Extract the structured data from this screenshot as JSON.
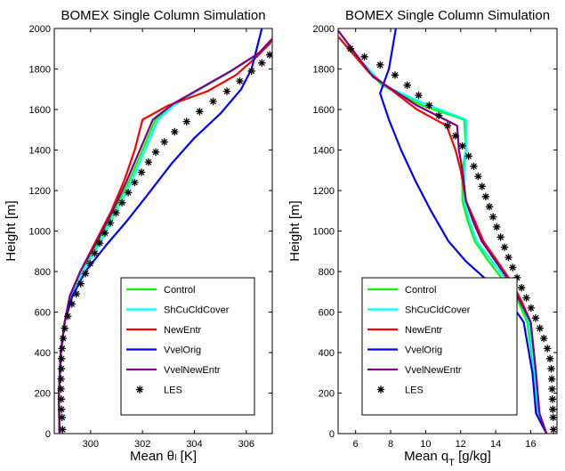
{
  "chart_data": [
    {
      "type": "line",
      "title": "BOMEX Single Column Simulation",
      "xlabel": "Mean θₗ [K]",
      "ylabel": "Height [m]",
      "xlim": [
        298.6,
        307
      ],
      "ylim": [
        0,
        2000
      ],
      "xticks": [
        300,
        302,
        304,
        306
      ],
      "yticks": [
        0,
        200,
        400,
        600,
        800,
        1000,
        1200,
        1400,
        1600,
        1800,
        2000
      ],
      "grid": false,
      "legend_position": "lower-right",
      "series": [
        {
          "name": "Control",
          "color": "#00ff00",
          "style": "line",
          "x": [
            298.8,
            298.78,
            298.85,
            299.0,
            299.25,
            299.7,
            300.3,
            300.9,
            301.5,
            302.0,
            302.5,
            303.2,
            304.2,
            305.3,
            306.4,
            307.0
          ],
          "y": [
            0,
            200,
            400,
            550,
            680,
            800,
            950,
            1100,
            1250,
            1400,
            1550,
            1620,
            1700,
            1780,
            1870,
            1930
          ]
        },
        {
          "name": "ShCuCldCover",
          "color": "#00ffff",
          "style": "line",
          "x": [
            298.8,
            298.78,
            298.85,
            299.0,
            299.25,
            299.7,
            300.4,
            301.0,
            301.6,
            302.1,
            302.6,
            303.2,
            304.2,
            305.3,
            306.4,
            307.0
          ],
          "y": [
            0,
            200,
            400,
            550,
            680,
            800,
            950,
            1100,
            1250,
            1400,
            1550,
            1620,
            1700,
            1780,
            1870,
            1930
          ]
        },
        {
          "name": "NewEntr",
          "color": "#ff0000",
          "style": "line",
          "x": [
            298.8,
            298.78,
            298.85,
            299.0,
            299.2,
            299.6,
            300.2,
            300.8,
            301.3,
            301.7,
            302.0,
            303.0,
            304.5,
            305.6,
            306.4,
            307.0
          ],
          "y": [
            0,
            200,
            400,
            550,
            680,
            800,
            950,
            1100,
            1250,
            1400,
            1550,
            1620,
            1690,
            1770,
            1860,
            1940
          ]
        },
        {
          "name": "VvelOrig",
          "color": "#0000ff",
          "style": "line",
          "x": [
            298.8,
            298.78,
            298.85,
            299.0,
            299.3,
            299.8,
            300.6,
            301.4,
            302.2,
            303.1,
            304.0,
            305.0,
            305.8,
            306.2,
            306.4,
            306.6
          ],
          "y": [
            0,
            200,
            400,
            550,
            680,
            800,
            930,
            1050,
            1180,
            1330,
            1460,
            1580,
            1700,
            1800,
            1900,
            2000
          ]
        },
        {
          "name": "VvelNewEntr",
          "color": "#800080",
          "style": "line",
          "x": [
            298.8,
            298.78,
            298.85,
            299.0,
            299.2,
            299.6,
            300.25,
            300.85,
            301.4,
            301.9,
            302.4,
            303.2,
            304.3,
            305.4,
            306.5,
            307.0
          ],
          "y": [
            0,
            200,
            400,
            550,
            680,
            800,
            950,
            1100,
            1250,
            1400,
            1550,
            1630,
            1710,
            1790,
            1880,
            1950
          ]
        },
        {
          "name": "LES",
          "color": "#000000",
          "style": "marker",
          "x": [
            298.92,
            298.9,
            298.88,
            298.87,
            298.86,
            298.86,
            298.87,
            298.88,
            298.9,
            298.94,
            299.0,
            299.12,
            299.28,
            299.45,
            299.62,
            299.8,
            299.98,
            300.16,
            300.35,
            300.55,
            300.76,
            300.98,
            301.21,
            301.45,
            301.7,
            301.96,
            302.23,
            302.51,
            302.84,
            303.24,
            303.7,
            304.2,
            304.72,
            305.25,
            305.75,
            306.2,
            306.6,
            306.9
          ],
          "y": [
            20,
            80,
            120,
            170,
            220,
            270,
            320,
            370,
            420,
            470,
            520,
            580,
            640,
            690,
            740,
            790,
            840,
            890,
            940,
            990,
            1040,
            1090,
            1140,
            1190,
            1240,
            1290,
            1340,
            1390,
            1440,
            1490,
            1540,
            1590,
            1640,
            1690,
            1740,
            1790,
            1830,
            1870
          ]
        }
      ]
    },
    {
      "type": "line",
      "title": "BOMEX Single Column Simulation",
      "xlabel": "Mean q_T [g/kg]",
      "ylabel": "Height [m]",
      "xlim": [
        5,
        17.5
      ],
      "ylim": [
        0,
        2000
      ],
      "xticks": [
        6,
        8,
        10,
        12,
        14,
        16
      ],
      "yticks": [
        0,
        200,
        400,
        600,
        800,
        1000,
        1200,
        1400,
        1600,
        1800,
        2000
      ],
      "grid": false,
      "legend_position": "lower-left",
      "series": [
        {
          "name": "Control",
          "color": "#00ff00",
          "style": "line",
          "x": [
            16.9,
            16.4,
            16.2,
            15.8,
            15.3,
            14.5,
            13.6,
            12.8,
            12.4,
            12.1,
            12.1,
            12.3,
            12.2,
            9.8,
            7.5,
            5.0
          ],
          "y": [
            0,
            100,
            300,
            550,
            650,
            750,
            850,
            950,
            1050,
            1150,
            1300,
            1400,
            1550,
            1620,
            1720,
            1960
          ]
        },
        {
          "name": "ShCuCldCover",
          "color": "#00ffff",
          "style": "line",
          "x": [
            16.9,
            16.4,
            16.2,
            15.9,
            15.4,
            14.7,
            13.8,
            12.9,
            12.5,
            12.2,
            12.2,
            12.3,
            12.3,
            9.9,
            7.6,
            5.0
          ],
          "y": [
            0,
            100,
            300,
            550,
            650,
            750,
            850,
            950,
            1050,
            1150,
            1300,
            1400,
            1550,
            1630,
            1720,
            1960
          ]
        },
        {
          "name": "NewEntr",
          "color": "#ff0000",
          "style": "line",
          "x": [
            16.9,
            16.5,
            16.3,
            16.0,
            15.5,
            14.9,
            14.1,
            13.3,
            12.8,
            12.3,
            12.0,
            11.7,
            11.2,
            9.5,
            6.8,
            5.0
          ],
          "y": [
            0,
            100,
            300,
            550,
            650,
            750,
            850,
            950,
            1050,
            1150,
            1300,
            1400,
            1520,
            1600,
            1780,
            1960
          ]
        },
        {
          "name": "VvelOrig",
          "color": "#0000ff",
          "style": "line",
          "x": [
            16.9,
            16.3,
            16.1,
            15.6,
            14.8,
            13.6,
            12.3,
            11.3,
            10.3,
            9.4,
            8.6,
            7.9,
            7.4,
            7.9,
            8.1,
            8.3
          ],
          "y": [
            0,
            100,
            300,
            550,
            650,
            750,
            850,
            950,
            1100,
            1250,
            1400,
            1550,
            1680,
            1800,
            1900,
            2000
          ]
        },
        {
          "name": "VvelNewEntr",
          "color": "#800080",
          "style": "line",
          "x": [
            16.9,
            16.5,
            16.3,
            16.0,
            15.4,
            14.8,
            14.0,
            13.2,
            12.7,
            12.3,
            12.1,
            11.9,
            11.8,
            9.5,
            7.0,
            5.0
          ],
          "y": [
            0,
            100,
            300,
            550,
            650,
            750,
            850,
            950,
            1050,
            1150,
            1300,
            1400,
            1520,
            1620,
            1760,
            1990
          ]
        },
        {
          "name": "LES",
          "color": "#000000",
          "style": "marker",
          "x": [
            17.3,
            17.28,
            17.26,
            17.24,
            17.22,
            17.2,
            17.17,
            17.1,
            16.95,
            16.75,
            16.52,
            16.28,
            16.02,
            15.75,
            15.48,
            15.22,
            14.97,
            14.73,
            14.5,
            14.28,
            14.06,
            13.85,
            13.64,
            13.43,
            13.22,
            13.0,
            12.75,
            12.45,
            12.1,
            11.7,
            11.25,
            10.75,
            10.2,
            9.6,
            8.95,
            8.25,
            7.4,
            6.5,
            5.7
          ],
          "y": [
            20,
            80,
            120,
            170,
            220,
            270,
            320,
            370,
            420,
            470,
            520,
            570,
            620,
            670,
            720,
            770,
            820,
            870,
            920,
            970,
            1020,
            1070,
            1120,
            1170,
            1220,
            1270,
            1320,
            1370,
            1420,
            1470,
            1520,
            1570,
            1620,
            1670,
            1720,
            1770,
            1820,
            1860,
            1900
          ]
        }
      ]
    }
  ]
}
